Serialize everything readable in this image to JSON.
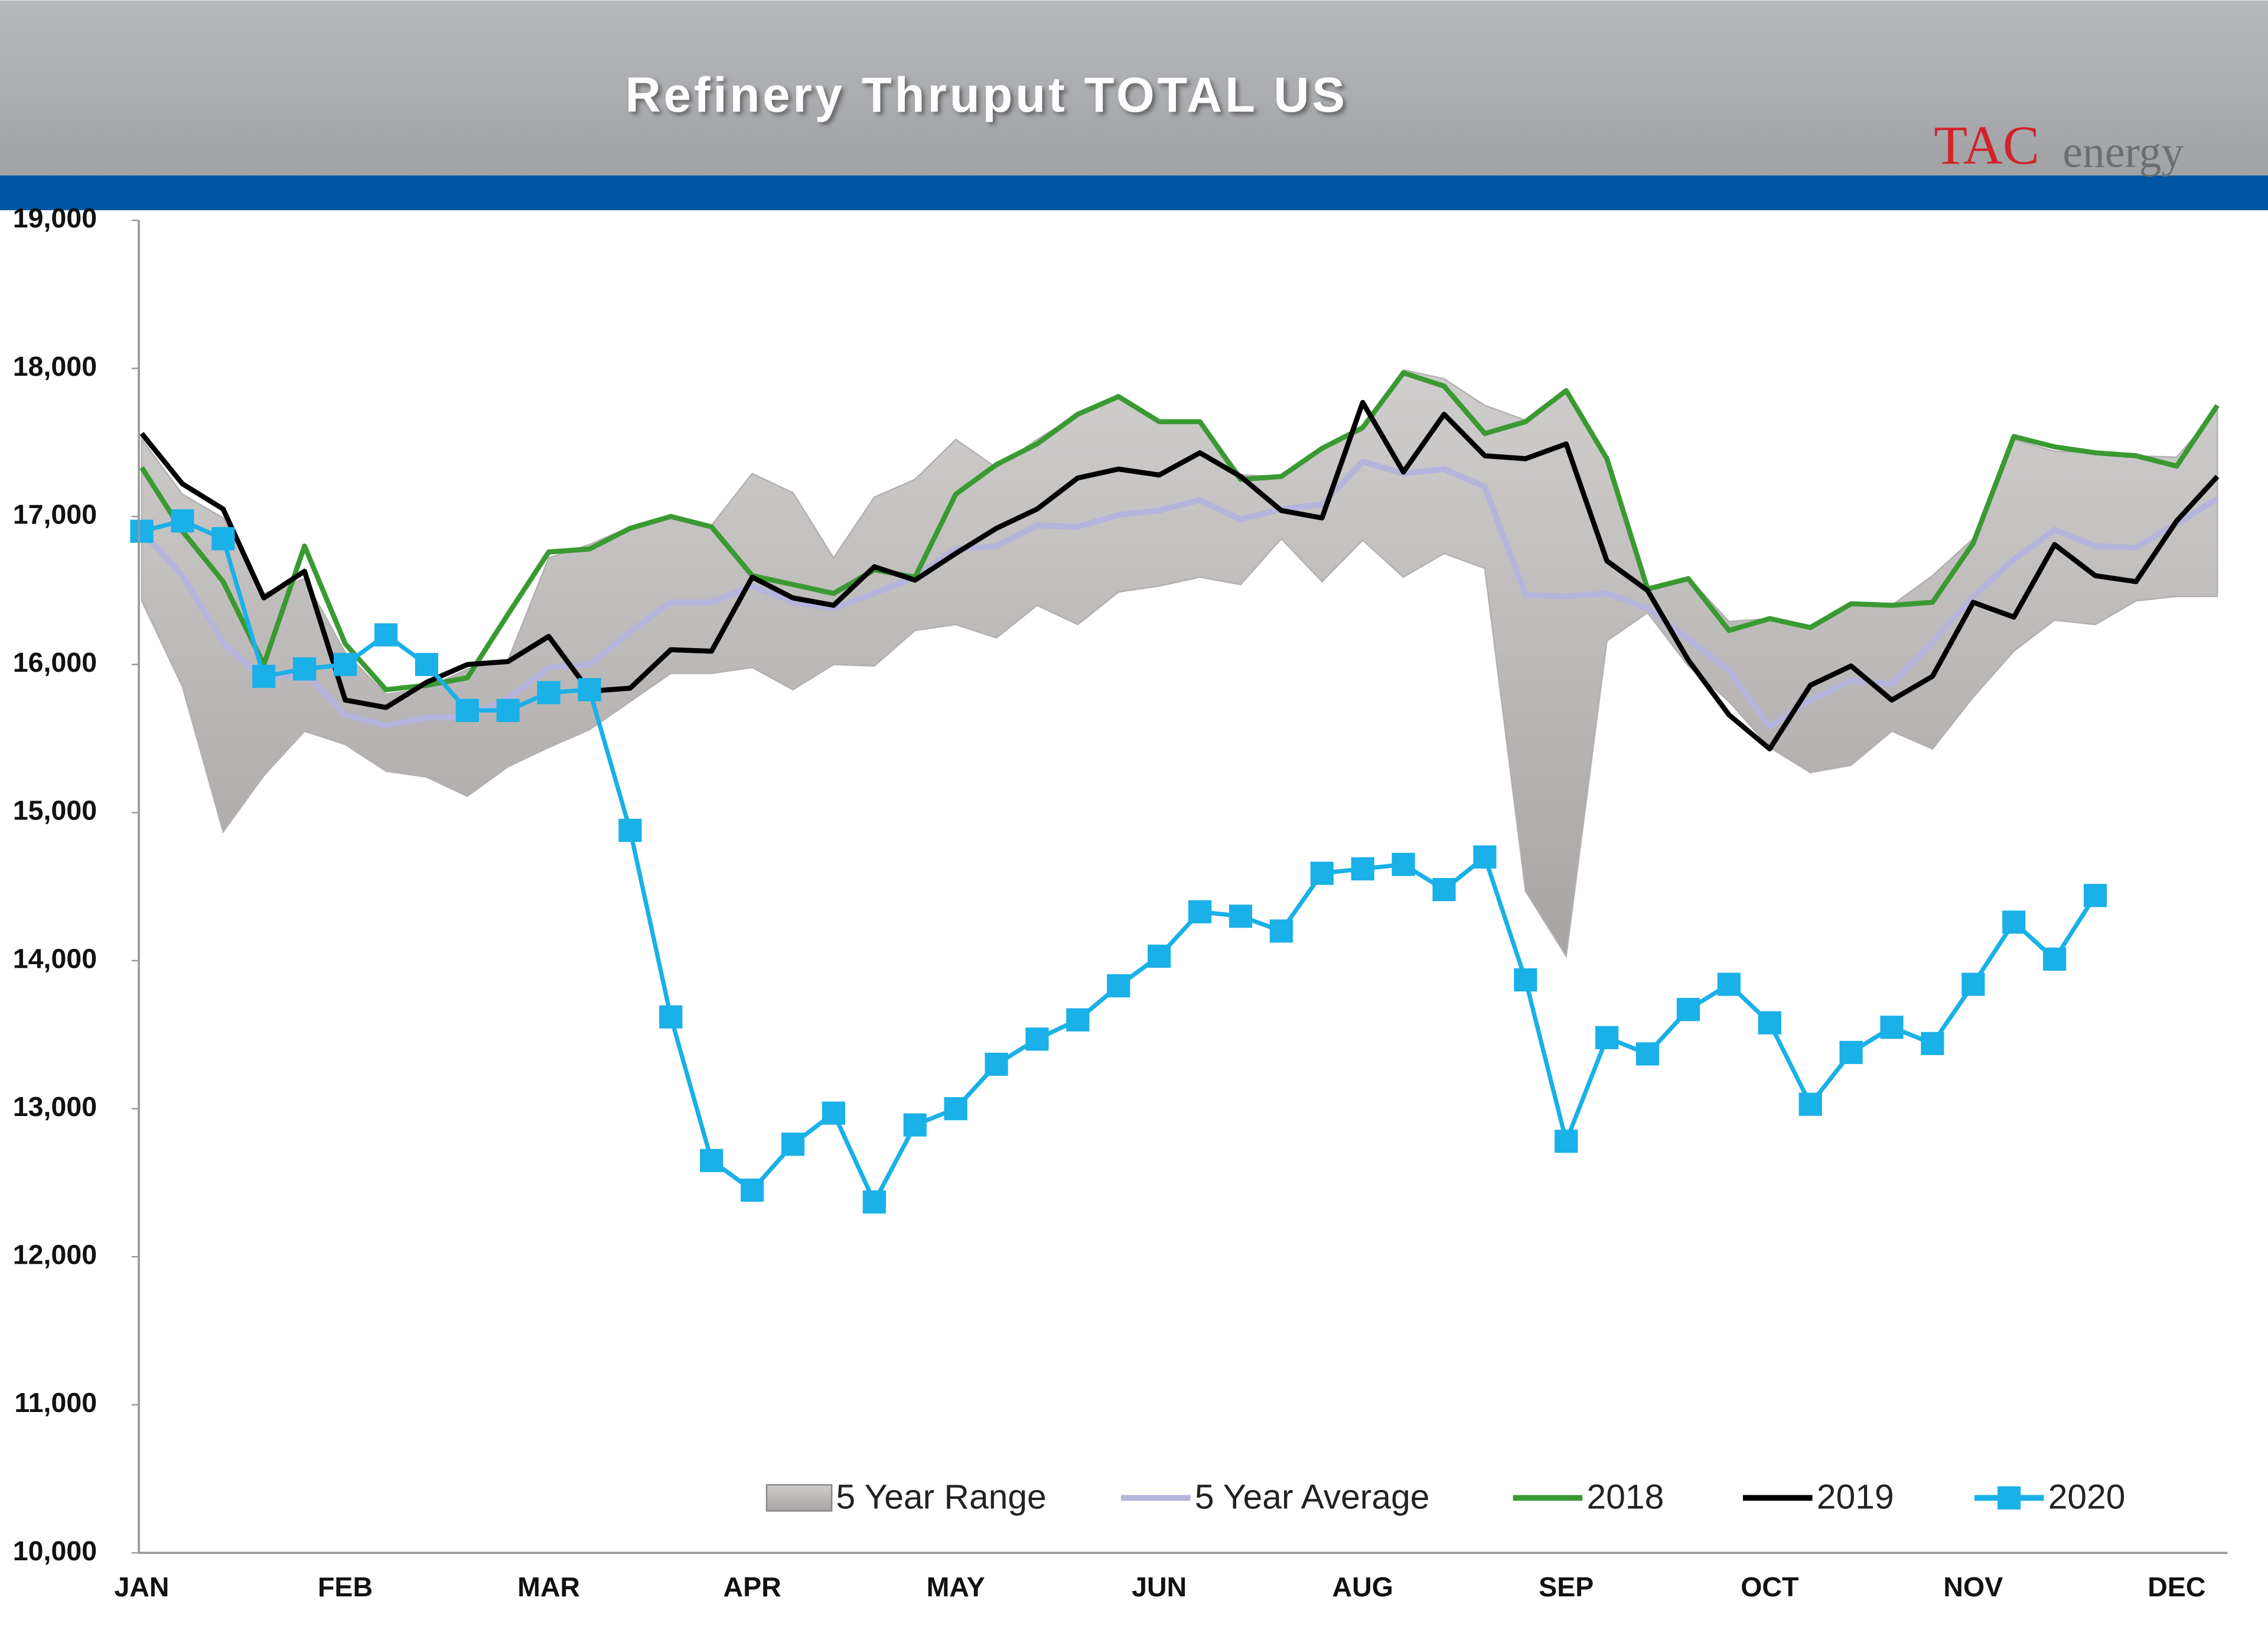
{
  "chart_data": {
    "type": "line",
    "title": "Refinery Thruput TOTAL US",
    "logo": {
      "first": "TAC",
      "second": "energy"
    },
    "categories": [
      "JAN",
      null,
      null,
      null,
      null,
      "FEB",
      null,
      null,
      null,
      null,
      "MAR",
      null,
      null,
      null,
      null,
      "APR",
      null,
      null,
      null,
      null,
      "MAY",
      null,
      null,
      null,
      null,
      "JUN",
      null,
      null,
      null,
      null,
      "AUG",
      null,
      null,
      null,
      null,
      "SEP",
      null,
      null,
      null,
      null,
      "OCT",
      null,
      null,
      null,
      null,
      "NOV",
      null,
      null,
      null,
      null,
      "DEC",
      null
    ],
    "ylim": [
      10000,
      19000
    ],
    "yticks": [
      {
        "value": 10000,
        "label": "10,000"
      },
      {
        "value": 11000,
        "label": "11,000"
      },
      {
        "value": 12000,
        "label": "12,000"
      },
      {
        "value": 13000,
        "label": "13,000"
      },
      {
        "value": 14000,
        "label": "14,000"
      },
      {
        "value": 15000,
        "label": "15,000"
      },
      {
        "value": 16000,
        "label": "16,000"
      },
      {
        "value": 17000,
        "label": "17,000"
      },
      {
        "value": 18000,
        "label": "18,000"
      },
      {
        "value": 19000,
        "label": "19,000"
      }
    ],
    "grid": false,
    "legend": "bottom",
    "series": [
      {
        "name": "5 Year Range",
        "kind": "range",
        "color": "#b3afaf",
        "high": [
          17520,
          17150,
          16990,
          16480,
          16580,
          16080,
          15800,
          15840,
          15970,
          16030,
          16720,
          16810,
          16930,
          17000,
          16940,
          17290,
          17160,
          16720,
          17130,
          17250,
          17520,
          17330,
          17520,
          17690,
          17810,
          17640,
          17640,
          17280,
          17270,
          17470,
          17580,
          17990,
          17930,
          17750,
          17650,
          17850,
          17390,
          16510,
          16590,
          16290,
          16310,
          16260,
          16400,
          16400,
          16600,
          16850,
          17520,
          17440,
          17430,
          17410,
          17400,
          17720
        ],
        "low": [
          16430,
          15850,
          14870,
          15250,
          15550,
          15460,
          15280,
          15240,
          15110,
          15310,
          15440,
          15560,
          15750,
          15940,
          15940,
          15980,
          15830,
          16000,
          15990,
          16230,
          16270,
          16180,
          16400,
          16270,
          16490,
          16530,
          16590,
          16540,
          16850,
          16560,
          16840,
          16590,
          16750,
          16650,
          14470,
          14030,
          16160,
          16350,
          15990,
          15750,
          15440,
          15270,
          15320,
          15550,
          15430,
          15780,
          16090,
          16300,
          16270,
          16430,
          16460,
          16460
        ]
      },
      {
        "name": "5 Year Average",
        "kind": "line",
        "color": "#b4b4dc",
        "values": [
          16900,
          16600,
          16150,
          15900,
          15950,
          15660,
          15590,
          15640,
          15650,
          15770,
          15980,
          16000,
          16220,
          16420,
          16420,
          16530,
          16420,
          16380,
          16480,
          16590,
          16780,
          16800,
          16940,
          16930,
          17010,
          17040,
          17110,
          16980,
          17050,
          17080,
          17370,
          17290,
          17320,
          17200,
          16470,
          16460,
          16480,
          16380,
          16170,
          15960,
          15580,
          15760,
          15890,
          15870,
          16150,
          16460,
          16710,
          16910,
          16800,
          16790,
          16950,
          17120
        ]
      },
      {
        "name": "2018",
        "kind": "line",
        "color": "#3a9a32",
        "values": [
          17330,
          16900,
          16560,
          16000,
          16800,
          16140,
          15830,
          15860,
          15910,
          16340,
          16760,
          16780,
          16920,
          17000,
          16930,
          16600,
          16540,
          16480,
          16640,
          16590,
          17150,
          17350,
          17490,
          17690,
          17810,
          17640,
          17640,
          17250,
          17270,
          17460,
          17600,
          17970,
          17880,
          17560,
          17640,
          17850,
          17390,
          16510,
          16580,
          16230,
          16310,
          16250,
          16410,
          16400,
          16420,
          16820,
          17540,
          17470,
          17430,
          17410,
          17340,
          17750
        ]
      },
      {
        "name": "2019",
        "kind": "line",
        "color": "#000000",
        "values": [
          17560,
          17220,
          17050,
          16450,
          16630,
          15760,
          15710,
          15880,
          16000,
          16020,
          16190,
          15820,
          15840,
          16100,
          16090,
          16590,
          16450,
          16400,
          16660,
          16570,
          16750,
          16920,
          17050,
          17260,
          17320,
          17280,
          17430,
          17270,
          17040,
          16990,
          17770,
          17300,
          17690,
          17410,
          17390,
          17490,
          16700,
          16500,
          16030,
          15660,
          15430,
          15860,
          15990,
          15760,
          15920,
          16420,
          16320,
          16810,
          16600,
          16560,
          16970,
          17270
        ]
      },
      {
        "name": "2020",
        "kind": "marker-line",
        "color": "#1ab0e8",
        "values": [
          16900,
          16970,
          16850,
          15920,
          15970,
          16000,
          16200,
          16000,
          15690,
          15690,
          15810,
          15830,
          14880,
          13620,
          12650,
          12450,
          12760,
          12970,
          12370,
          12890,
          13000,
          13300,
          13470,
          13600,
          13830,
          14030,
          14330,
          14300,
          14200,
          14590,
          14620,
          14650,
          14480,
          14700,
          13870,
          12780,
          13480,
          13370,
          13670,
          13840,
          13580,
          13030,
          13380,
          13550,
          13440,
          13840,
          14260,
          14010,
          14440,
          null,
          null,
          null
        ]
      }
    ]
  }
}
